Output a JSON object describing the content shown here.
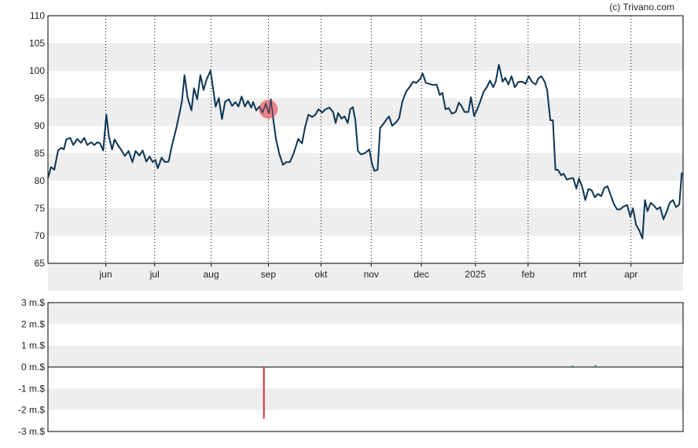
{
  "credit": "(c) Trivano.com",
  "colors": {
    "price_line": "#0d3553",
    "band": "#eeeeee",
    "marker": "#e8707a",
    "neg_bar": "#d22f44",
    "pos_bar": "#2e7d6b",
    "axis": "#000000",
    "grid": "#000000"
  },
  "chart_data": [
    {
      "type": "line",
      "title": "",
      "xlabel": "",
      "ylabel": "",
      "ylim": [
        65,
        110
      ],
      "y_ticks": [
        "110",
        "105",
        "100",
        "95",
        "90",
        "85",
        "80",
        "75",
        "70",
        "65"
      ],
      "x_ticks": [
        "jun",
        "jul",
        "aug",
        "sep",
        "okt",
        "nov",
        "dec",
        "2025",
        "feb",
        "mrt",
        "apr"
      ],
      "x_range": [
        0,
        100
      ],
      "x_tick_positions": [
        9.1,
        16.8,
        25.7,
        34.7,
        43.0,
        50.9,
        58.8,
        67.3,
        75.6,
        83.7,
        91.8
      ],
      "grid": "vertical dotted at month ticks, alternating horizontal bands",
      "marker": {
        "x": 34.7,
        "y": 93.0
      },
      "series": [
        {
          "values": [
            [
              0.0,
              80.5
            ],
            [
              0.5,
              82.5
            ],
            [
              1.0,
              82.0
            ],
            [
              1.6,
              85.5
            ],
            [
              2.1,
              86.0
            ],
            [
              2.5,
              85.7
            ],
            [
              2.9,
              87.5
            ],
            [
              3.5,
              87.8
            ],
            [
              4.0,
              86.5
            ],
            [
              4.6,
              87.6
            ],
            [
              5.2,
              86.9
            ],
            [
              5.7,
              87.8
            ],
            [
              6.2,
              86.5
            ],
            [
              6.8,
              87.0
            ],
            [
              7.3,
              86.5
            ],
            [
              7.8,
              87.0
            ],
            [
              8.2,
              86.8
            ],
            [
              8.7,
              85.5
            ],
            [
              9.2,
              92.0
            ],
            [
              9.6,
              88.0
            ],
            [
              10.1,
              85.7
            ],
            [
              10.5,
              87.5
            ],
            [
              11.0,
              86.5
            ],
            [
              11.6,
              85.5
            ],
            [
              12.1,
              84.5
            ],
            [
              12.7,
              85.4
            ],
            [
              13.3,
              83.4
            ],
            [
              13.8,
              85.4
            ],
            [
              14.4,
              84.6
            ],
            [
              14.9,
              85.5
            ],
            [
              15.5,
              83.5
            ],
            [
              16.0,
              84.4
            ],
            [
              16.5,
              83.4
            ],
            [
              16.9,
              83.8
            ],
            [
              17.3,
              82.3
            ],
            [
              17.9,
              84.2
            ],
            [
              18.4,
              83.4
            ],
            [
              19.0,
              83.5
            ],
            [
              19.5,
              86.3
            ],
            [
              20.2,
              89.5
            ],
            [
              20.7,
              92.2
            ],
            [
              21.1,
              94.5
            ],
            [
              21.5,
              99.2
            ],
            [
              22.0,
              95.0
            ],
            [
              22.6,
              92.8
            ],
            [
              23.0,
              96.8
            ],
            [
              23.5,
              94.8
            ],
            [
              24.0,
              99.2
            ],
            [
              24.5,
              96.5
            ],
            [
              25.0,
              98.5
            ],
            [
              25.6,
              100.0
            ],
            [
              26.0,
              96.8
            ],
            [
              26.4,
              93.5
            ],
            [
              26.9,
              95.0
            ],
            [
              27.4,
              91.2
            ],
            [
              27.9,
              94.4
            ],
            [
              28.5,
              94.8
            ],
            [
              29.0,
              93.6
            ],
            [
              29.5,
              94.3
            ],
            [
              30.0,
              93.5
            ],
            [
              30.5,
              95.3
            ],
            [
              31.0,
              93.5
            ],
            [
              31.5,
              94.5
            ],
            [
              32.0,
              93.3
            ],
            [
              32.3,
              94.3
            ],
            [
              32.8,
              92.8
            ],
            [
              33.3,
              93.5
            ],
            [
              33.8,
              92.4
            ],
            [
              34.3,
              94.0
            ],
            [
              34.8,
              92.2
            ],
            [
              35.1,
              94.8
            ],
            [
              35.5,
              91.0
            ],
            [
              35.9,
              87.6
            ],
            [
              36.4,
              85.0
            ],
            [
              37.0,
              82.9
            ],
            [
              37.5,
              83.4
            ],
            [
              38.1,
              83.4
            ],
            [
              38.7,
              85.0
            ],
            [
              39.4,
              87.6
            ],
            [
              40.0,
              86.8
            ],
            [
              40.5,
              89.8
            ],
            [
              41.0,
              92.0
            ],
            [
              41.6,
              91.6
            ],
            [
              42.1,
              92.0
            ],
            [
              42.6,
              93.0
            ],
            [
              43.2,
              92.4
            ],
            [
              43.7,
              93.0
            ],
            [
              44.3,
              93.3
            ],
            [
              44.9,
              92.5
            ],
            [
              45.3,
              90.5
            ],
            [
              45.7,
              92.3
            ],
            [
              46.2,
              91.3
            ],
            [
              46.7,
              91.7
            ],
            [
              47.2,
              90.5
            ],
            [
              47.6,
              93.0
            ],
            [
              48.0,
              93.4
            ],
            [
              48.4,
              91.0
            ],
            [
              48.8,
              85.4
            ],
            [
              49.3,
              84.8
            ],
            [
              49.9,
              85.0
            ],
            [
              50.6,
              85.7
            ],
            [
              51.0,
              83.2
            ],
            [
              51.4,
              81.8
            ],
            [
              51.9,
              82.0
            ],
            [
              52.3,
              89.6
            ],
            [
              52.8,
              90.3
            ],
            [
              53.2,
              91.0
            ],
            [
              53.7,
              91.7
            ],
            [
              54.2,
              90.0
            ],
            [
              54.8,
              90.6
            ],
            [
              55.3,
              91.4
            ],
            [
              55.8,
              94.4
            ],
            [
              56.4,
              96.2
            ],
            [
              56.9,
              97.0
            ],
            [
              57.5,
              98.0
            ],
            [
              58.0,
              97.8
            ],
            [
              58.6,
              98.5
            ],
            [
              59.0,
              99.5
            ],
            [
              59.5,
              97.8
            ],
            [
              60.1,
              97.6
            ],
            [
              60.6,
              97.4
            ],
            [
              61.2,
              97.5
            ],
            [
              61.7,
              95.6
            ],
            [
              62.1,
              96.0
            ],
            [
              62.6,
              93.0
            ],
            [
              63.1,
              93.2
            ],
            [
              63.6,
              92.2
            ],
            [
              64.2,
              92.5
            ],
            [
              64.7,
              94.2
            ],
            [
              65.1,
              93.6
            ],
            [
              65.6,
              92.5
            ],
            [
              66.2,
              92.5
            ],
            [
              66.6,
              95.2
            ],
            [
              67.1,
              91.8
            ],
            [
              67.6,
              93.0
            ],
            [
              68.1,
              94.5
            ],
            [
              68.6,
              96.2
            ],
            [
              69.1,
              97.0
            ],
            [
              69.6,
              98.2
            ],
            [
              70.1,
              97.0
            ],
            [
              70.5,
              98.0
            ],
            [
              71.0,
              101.1
            ],
            [
              71.6,
              98.0
            ],
            [
              72.0,
              98.7
            ],
            [
              72.5,
              97.5
            ],
            [
              73.0,
              99.0
            ],
            [
              73.5,
              97.0
            ],
            [
              74.1,
              98.0
            ],
            [
              74.7,
              98.0
            ],
            [
              75.2,
              97.6
            ],
            [
              75.7,
              99.0
            ],
            [
              76.2,
              98.0
            ],
            [
              76.8,
              97.5
            ],
            [
              77.2,
              98.6
            ],
            [
              77.7,
              99.0
            ],
            [
              78.2,
              98.0
            ],
            [
              78.6,
              96.5
            ],
            [
              79.1,
              91.0
            ],
            [
              79.5,
              91.0
            ],
            [
              79.9,
              82.0
            ],
            [
              80.3,
              82.0
            ],
            [
              80.8,
              81.0
            ],
            [
              81.2,
              81.3
            ],
            [
              81.7,
              80.2
            ],
            [
              82.2,
              80.4
            ],
            [
              82.7,
              80.5
            ],
            [
              83.2,
              78.6
            ],
            [
              83.6,
              80.4
            ],
            [
              84.1,
              79.0
            ],
            [
              84.6,
              76.5
            ],
            [
              85.1,
              78.5
            ],
            [
              85.6,
              78.3
            ],
            [
              86.1,
              77.0
            ],
            [
              86.6,
              77.6
            ],
            [
              87.1,
              77.2
            ],
            [
              87.6,
              78.7
            ],
            [
              88.1,
              79.0
            ],
            [
              88.6,
              77.4
            ],
            [
              89.1,
              75.8
            ],
            [
              89.6,
              74.8
            ],
            [
              90.1,
              74.8
            ],
            [
              90.6,
              75.3
            ],
            [
              91.2,
              75.6
            ],
            [
              91.7,
              73.5
            ],
            [
              92.1,
              75.0
            ],
            [
              92.6,
              72.0
            ],
            [
              93.1,
              71.0
            ],
            [
              93.6,
              69.5
            ],
            [
              94.0,
              76.5
            ],
            [
              94.4,
              74.5
            ],
            [
              94.9,
              76.0
            ],
            [
              95.4,
              75.5
            ],
            [
              95.9,
              74.8
            ],
            [
              96.4,
              75.2
            ],
            [
              96.9,
              73.0
            ],
            [
              97.4,
              74.3
            ],
            [
              97.9,
              76.0
            ],
            [
              98.4,
              76.5
            ],
            [
              98.9,
              75.2
            ],
            [
              99.4,
              75.7
            ],
            [
              99.8,
              81.5
            ]
          ]
        }
      ]
    },
    {
      "type": "bar",
      "title": "",
      "xlabel": "",
      "ylabel": "",
      "ylim": [
        -3,
        3
      ],
      "y_ticks": [
        "3 m.$",
        "2 m.$",
        "1 m.$",
        "0 m.$",
        "-1 m.$",
        "-2 m.$",
        "-3 m.$"
      ],
      "bars": [
        {
          "x": 34.0,
          "value": -2.4
        },
        {
          "x": 82.6,
          "value": 0.07
        },
        {
          "x": 86.2,
          "value": 0.09
        }
      ]
    }
  ]
}
